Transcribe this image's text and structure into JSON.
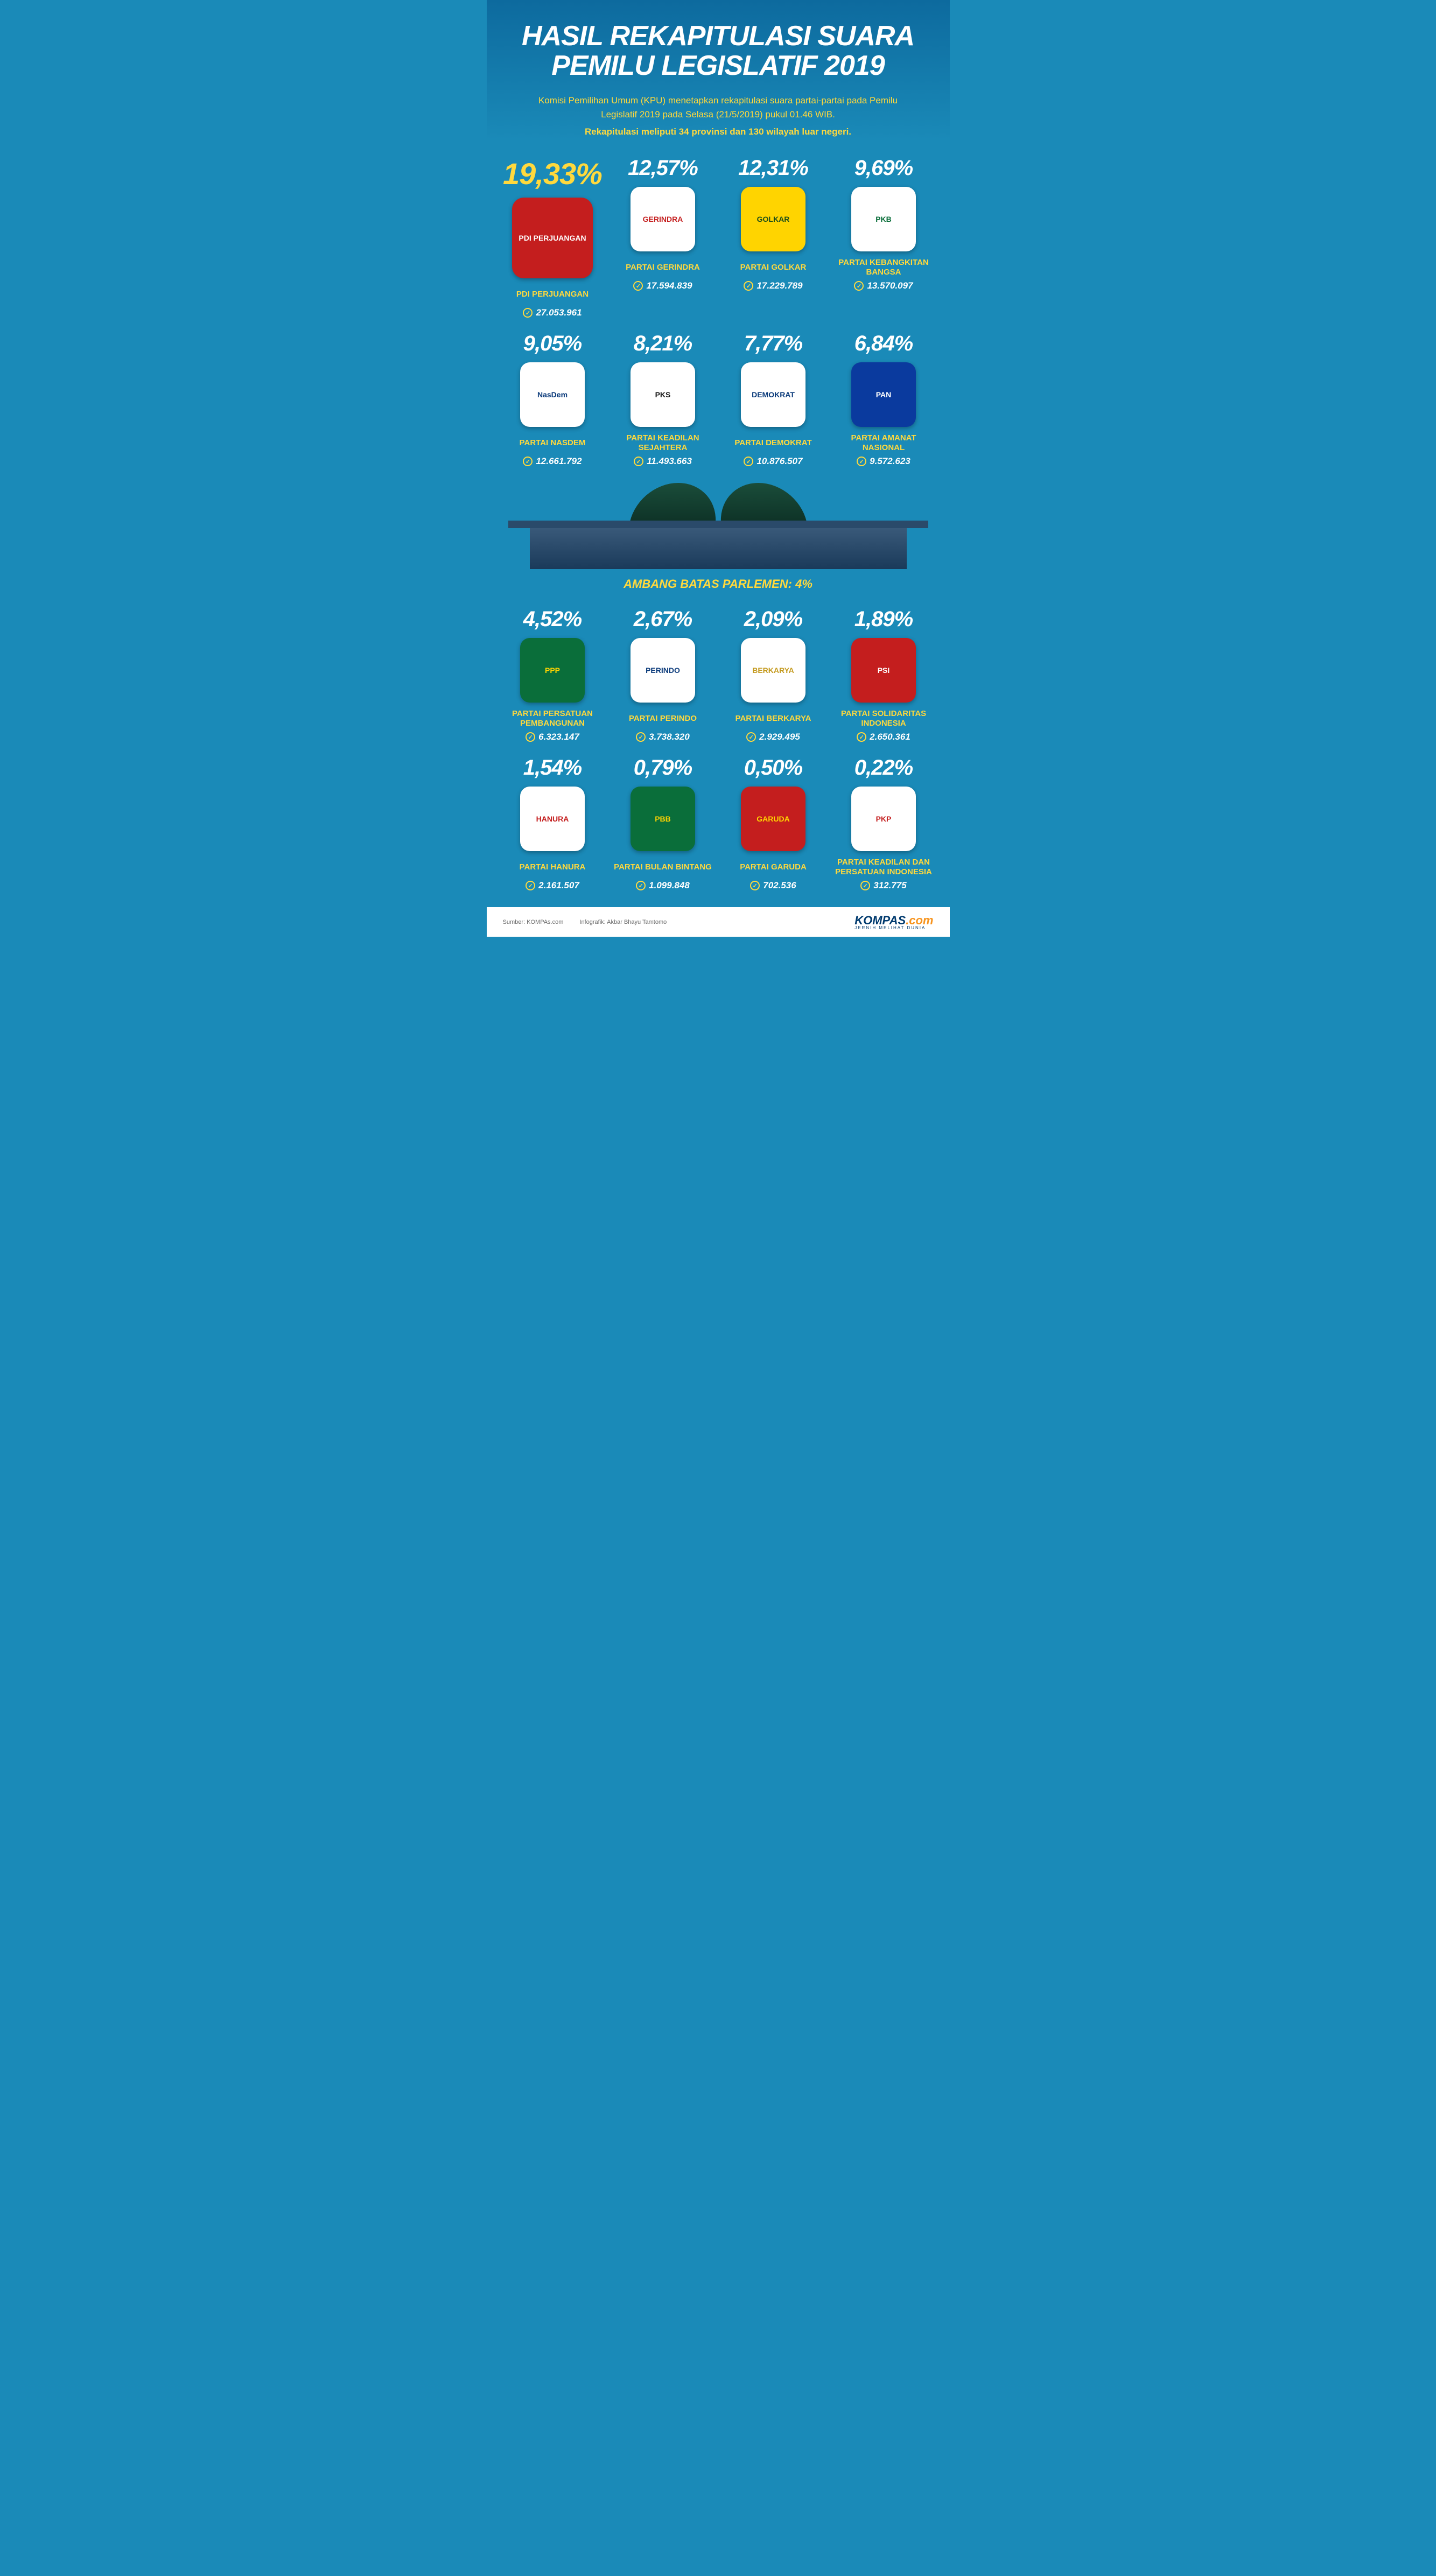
{
  "title_line1": "HASIL REKAPITULASI SUARA",
  "title_line2": "PEMILU LEGISLATIF 2019",
  "subtitle": "Komisi Pemilihan Umum (KPU) menetapkan rekapitulasi suara partai-partai pada Pemilu Legislatif 2019 pada Selasa (21/5/2019) pukul 01.46 WIB.",
  "subtitle2": "Rekapitulasi meliputi 34 provinsi dan 130 wilayah luar negeri.",
  "threshold_label": "AMBANG BATAS PARLEMEN: 4%",
  "colors": {
    "bg": "#1a8ab8",
    "accent": "#ffd93d",
    "white": "#ffffff"
  },
  "parties_top": [
    {
      "pct": "19,33%",
      "name": "PDI PERJUANGAN",
      "votes": "27.053.961",
      "big": true,
      "logo_bg": "#c41e1e",
      "logo_fg": "#ffffff",
      "logo_text": "PDI PERJUANGAN"
    },
    {
      "pct": "12,57%",
      "name": "PARTAI GERINDRA",
      "votes": "17.594.839",
      "logo_bg": "#ffffff",
      "logo_fg": "#c41e1e",
      "logo_text": "GERINDRA"
    },
    {
      "pct": "12,31%",
      "name": "PARTAI GOLKAR",
      "votes": "17.229.789",
      "logo_bg": "#ffd400",
      "logo_fg": "#1a4d1a",
      "logo_text": "GOLKAR"
    },
    {
      "pct": "9,69%",
      "name": "PARTAI KEBANGKITAN BANGSA",
      "votes": "13.570.097",
      "logo_bg": "#ffffff",
      "logo_fg": "#0a6e3a",
      "logo_text": "PKB"
    },
    {
      "pct": "9,05%",
      "name": "PARTAI NASDEM",
      "votes": "12.661.792",
      "logo_bg": "#ffffff",
      "logo_fg": "#0a3a7a",
      "logo_text": "NasDem"
    },
    {
      "pct": "8,21%",
      "name": "PARTAI KEADILAN SEJAHTERA",
      "votes": "11.493.663",
      "logo_bg": "#ffffff",
      "logo_fg": "#1a1a1a",
      "logo_text": "PKS"
    },
    {
      "pct": "7,77%",
      "name": "PARTAI DEMOKRAT",
      "votes": "10.876.507",
      "logo_bg": "#ffffff",
      "logo_fg": "#0a3a7a",
      "logo_text": "DEMOKRAT"
    },
    {
      "pct": "6,84%",
      "name": "PARTAI AMANAT NASIONAL",
      "votes": "9.572.623",
      "logo_bg": "#0a3a9e",
      "logo_fg": "#ffffff",
      "logo_text": "PAN"
    }
  ],
  "parties_bottom": [
    {
      "pct": "4,52%",
      "name": "PARTAI PERSATUAN PEMBANGUNAN",
      "votes": "6.323.147",
      "logo_bg": "#0a6e3a",
      "logo_fg": "#ffd400",
      "logo_text": "PPP"
    },
    {
      "pct": "2,67%",
      "name": "PARTAI PERINDO",
      "votes": "3.738.320",
      "logo_bg": "#ffffff",
      "logo_fg": "#0a3a7a",
      "logo_text": "PERINDO"
    },
    {
      "pct": "2,09%",
      "name": "PARTAI BERKARYA",
      "votes": "2.929.495",
      "logo_bg": "#ffffff",
      "logo_fg": "#c49a1e",
      "logo_text": "BERKARYA"
    },
    {
      "pct": "1,89%",
      "name": "PARTAI SOLIDARITAS INDONESIA",
      "votes": "2.650.361",
      "logo_bg": "#c41e1e",
      "logo_fg": "#ffffff",
      "logo_text": "PSI"
    },
    {
      "pct": "1,54%",
      "name": "PARTAI HANURA",
      "votes": "2.161.507",
      "logo_bg": "#ffffff",
      "logo_fg": "#c41e1e",
      "logo_text": "HANURA"
    },
    {
      "pct": "0,79%",
      "name": "PARTAI BULAN BINTANG",
      "votes": "1.099.848",
      "logo_bg": "#0a6e3a",
      "logo_fg": "#ffd400",
      "logo_text": "PBB"
    },
    {
      "pct": "0,50%",
      "name": "PARTAI GARUDA",
      "votes": "702.536",
      "logo_bg": "#c41e1e",
      "logo_fg": "#ffd400",
      "logo_text": "GARUDA"
    },
    {
      "pct": "0,22%",
      "name": "PARTAI KEADILAN DAN PERSATUAN INDONESIA",
      "votes": "312.775",
      "logo_bg": "#ffffff",
      "logo_fg": "#c41e1e",
      "logo_text": "PKP"
    }
  ],
  "footer": {
    "source_label": "Sumber:",
    "source": "KOMPAs.com",
    "credit_label": "Infografik:",
    "credit": "Akbar Bhayu Tamtomo",
    "brand_dark": "KOMPAS",
    "brand_orange": ".com",
    "tagline": "JERNIH MELIHAT DUNIA"
  }
}
